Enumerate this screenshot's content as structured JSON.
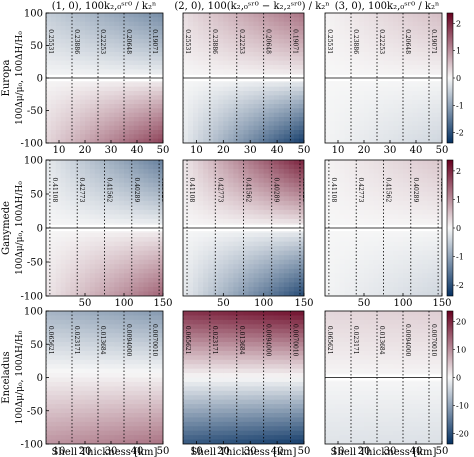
{
  "figure": {
    "col_titles": [
      "(1, 0),  100k₂,₀ˢʳ⁰ / k₂ⁿ",
      "(2, 0),  100(k₂,₀ˢʳ⁰ − k₂,₂ˢʳ⁰) / k₂ⁿ",
      "(3, 0),  100k₂,₀ˢʳ⁰ / k₂ⁿ"
    ],
    "row_names": [
      "Europa",
      "Ganymede",
      "Enceladus"
    ],
    "row_axis_labels": [
      "100Δμ/μ₀, 100ΔH/H₀",
      "100Δμ/μ₀, 100ΔH/H₀",
      "100Δμ/μ₀, 100ΔH/H₀"
    ],
    "xlabel": "Shell Thickness [km]",
    "colors": {
      "pos": "#67001f",
      "mid": "#f7f7f7",
      "neg": "#053061"
    }
  },
  "chart_data": [
    {
      "type": "heatmap",
      "row": "Europa",
      "col": 0,
      "xlim": [
        5,
        50
      ],
      "ylim": [
        -100,
        100
      ],
      "xticks": [
        10,
        20,
        30,
        40,
        50
      ],
      "yticks": [
        100,
        50,
        0,
        -50,
        -100
      ],
      "vlines": {
        "x": [
          5,
          15,
          25,
          35,
          45
        ],
        "labels": [
          "0.25531",
          "0.23886",
          "0.22253",
          "0.20648",
          "0.19071"
        ]
      },
      "field": {
        "tl": -0.6,
        "tr": -1.6,
        "bl": 0.4,
        "br": 2.2,
        "zero_line": true
      }
    },
    {
      "type": "heatmap",
      "row": "Europa",
      "col": 1,
      "xlim": [
        5,
        50
      ],
      "ylim": [
        -100,
        100
      ],
      "vlines": {
        "x": [
          5,
          15,
          25,
          35,
          45
        ],
        "labels": [
          "0.25531",
          "0.23886",
          "0.22253",
          "0.20648",
          "0.19071"
        ]
      },
      "field": {
        "tl": 0.3,
        "tr": 1.6,
        "bl": -0.2,
        "br": -2.8,
        "zero_line": true
      }
    },
    {
      "type": "heatmap",
      "row": "Europa",
      "col": 2,
      "xlim": [
        5,
        50
      ],
      "ylim": [
        -100,
        100
      ],
      "colorbar": {
        "ticks": [
          2,
          1,
          0,
          -1,
          -2
        ]
      },
      "vlines": {
        "x": [
          5,
          15,
          25,
          35,
          45
        ],
        "labels": [
          "0.25531",
          "0.23886",
          "0.22253",
          "0.20648",
          "0.19071"
        ]
      },
      "field": {
        "tl": 0.05,
        "tr": 0.7,
        "bl": -0.05,
        "br": -0.5,
        "zero_line": true
      }
    },
    {
      "type": "heatmap",
      "row": "Ganymede",
      "col": 0,
      "xlim": [
        0,
        150
      ],
      "ylim": [
        -100,
        100
      ],
      "xticks": [
        50,
        100,
        150
      ],
      "yticks": [
        100,
        50,
        0,
        -50,
        -100
      ],
      "vlines": {
        "x": [
          5,
          40,
          75,
          110,
          145
        ],
        "labels": [
          "0.41108",
          "0.42773",
          "0.41562",
          "0.40289",
          "0.39128"
        ]
      },
      "field": {
        "tl": -0.2,
        "tr": -1.8,
        "bl": 0.2,
        "br": 1.8,
        "zero_line": true
      }
    },
    {
      "type": "heatmap",
      "row": "Ganymede",
      "col": 1,
      "xlim": [
        0,
        150
      ],
      "ylim": [
        -100,
        100
      ],
      "vlines": {
        "x": [
          5,
          40,
          75,
          110,
          145
        ],
        "labels": [
          "0.41108",
          "0.42773",
          "0.41562",
          "0.40289",
          "0.39128"
        ]
      },
      "field": {
        "tl": 0.2,
        "tr": 2.6,
        "bl": -0.2,
        "br": -2.6,
        "zero_line": true
      }
    },
    {
      "type": "heatmap",
      "row": "Ganymede",
      "col": 2,
      "xlim": [
        0,
        150
      ],
      "ylim": [
        -100,
        100
      ],
      "colorbar": {
        "ticks": [
          2,
          1,
          0,
          -1,
          -2
        ]
      },
      "vlines": {
        "x": [
          5,
          40,
          75,
          110,
          145
        ],
        "labels": [
          "0.41108",
          "0.42773",
          "0.41562",
          "0.40289",
          "0.39128"
        ]
      },
      "field": {
        "tl": 0.05,
        "tr": 0.6,
        "bl": -0.05,
        "br": -0.5,
        "zero_line": true
      }
    },
    {
      "type": "heatmap",
      "row": "Enceladus",
      "col": 0,
      "xlim": [
        5,
        50
      ],
      "ylim": [
        -100,
        100
      ],
      "xticks": [
        10,
        20,
        30,
        40,
        50
      ],
      "yticks": [
        100,
        50,
        0,
        -50,
        -100
      ],
      "vlines": {
        "x": [
          5,
          15,
          25,
          35,
          45
        ],
        "labels": [
          "0.065621",
          "0.023171",
          "0.013684",
          "0.0094000",
          "0.0070010"
        ]
      },
      "field": {
        "tl": -1.0,
        "tr": -1.4,
        "bl": 1.2,
        "br": 1.6,
        "zero_line": false
      }
    },
    {
      "type": "heatmap",
      "row": "Enceladus",
      "col": 1,
      "xlim": [
        5,
        50
      ],
      "ylim": [
        -100,
        100
      ],
      "vlines": {
        "x": [
          5,
          15,
          25,
          35,
          45
        ],
        "labels": [
          "0.065621",
          "0.023171",
          "0.013684",
          "0.0094000",
          "0.0070010"
        ]
      },
      "field": {
        "tl": 2.4,
        "tr": 2.8,
        "bl": -2.4,
        "br": -2.8,
        "zero_line": false
      }
    },
    {
      "type": "heatmap",
      "row": "Enceladus",
      "col": 2,
      "xlim": [
        5,
        50
      ],
      "ylim": [
        -100,
        100
      ],
      "colorbar": {
        "ticks": [
          20,
          10,
          0,
          -10,
          -20
        ]
      },
      "vlines": {
        "x": [
          5,
          15,
          25,
          35,
          45
        ],
        "labels": [
          "0.065621",
          "0.023171",
          "0.013684",
          "0.0094000",
          "0.0070010"
        ]
      },
      "field": {
        "tl": 0.4,
        "tr": 0.5,
        "bl": -0.3,
        "br": -0.35,
        "zero_line": true
      }
    }
  ]
}
